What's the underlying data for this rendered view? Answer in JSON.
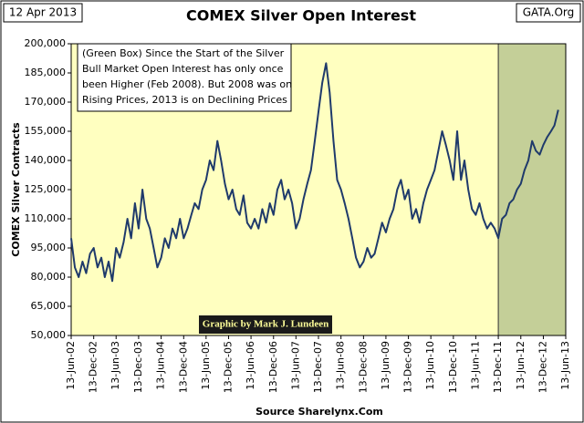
{
  "chart_data": {
    "type": "line",
    "title": "COMEX Silver Open Interest",
    "date_label": "12 Apr 2013",
    "site_label": "GATA.Org",
    "source": "Source Sharelynx.Com",
    "credit": "Graphic by Mark J. Lundeen",
    "ylabel": "COMEX Silver Contracts",
    "annotation": [
      "(Green Box)  Since the Start of the Silver",
      "Bull Market Open Interest has only once",
      "been Higher (Feb 2008).  But 2008 was on",
      "Rising Prices, 2013 is on Declining Prices"
    ],
    "background": "#ffffc0",
    "shade": {
      "from": "2011-12-13",
      "to": "2013-06-13",
      "color": "#c4cf98"
    },
    "xlim": [
      "2002-06-13",
      "2013-06-13"
    ],
    "xticks": [
      {
        "value": "2002-06-13",
        "label": "13-Jun-02"
      },
      {
        "value": "2002-12-13",
        "label": "13-Dec-02"
      },
      {
        "value": "2003-06-13",
        "label": "13-Jun-03"
      },
      {
        "value": "2003-12-13",
        "label": "13-Dec-03"
      },
      {
        "value": "2004-06-13",
        "label": "13-Jun-04"
      },
      {
        "value": "2004-12-13",
        "label": "13-Dec-04"
      },
      {
        "value": "2005-06-13",
        "label": "13-Jun-05"
      },
      {
        "value": "2005-12-13",
        "label": "13-Dec-05"
      },
      {
        "value": "2006-06-13",
        "label": "13-Jun-06"
      },
      {
        "value": "2006-12-13",
        "label": "13-Dec-06"
      },
      {
        "value": "2007-06-13",
        "label": "13-Jun-07"
      },
      {
        "value": "2007-12-13",
        "label": "13-Dec-07"
      },
      {
        "value": "2008-06-13",
        "label": "13-Jun-08"
      },
      {
        "value": "2008-12-13",
        "label": "13-Dec-08"
      },
      {
        "value": "2009-06-13",
        "label": "13-Jun-09"
      },
      {
        "value": "2009-12-13",
        "label": "13-Dec-09"
      },
      {
        "value": "2010-06-13",
        "label": "13-Jun-10"
      },
      {
        "value": "2010-12-13",
        "label": "13-Dec-10"
      },
      {
        "value": "2011-06-13",
        "label": "13-Jun-11"
      },
      {
        "value": "2011-12-13",
        "label": "13-Dec-11"
      },
      {
        "value": "2012-06-13",
        "label": "13-Jun-12"
      },
      {
        "value": "2012-12-13",
        "label": "13-Dec-12"
      },
      {
        "value": "2013-06-13",
        "label": "13-Jun-13"
      }
    ],
    "ylim": [
      50000,
      200000
    ],
    "yticks": [
      {
        "value": 50000,
        "label": "50,000"
      },
      {
        "value": 65000,
        "label": "65,000"
      },
      {
        "value": 80000,
        "label": "80,000"
      },
      {
        "value": 95000,
        "label": "95,000"
      },
      {
        "value": 110000,
        "label": "110,000"
      },
      {
        "value": 125000,
        "label": "125,000"
      },
      {
        "value": 140000,
        "label": "140,000"
      },
      {
        "value": 155000,
        "label": "155,000"
      },
      {
        "value": 170000,
        "label": "170,000"
      },
      {
        "value": 185000,
        "label": "185,000"
      },
      {
        "value": 200000,
        "label": "200,000"
      }
    ],
    "x": [
      "2002-06-13",
      "2002-07-13",
      "2002-08-13",
      "2002-09-13",
      "2002-10-13",
      "2002-11-13",
      "2002-12-13",
      "2003-01-13",
      "2003-02-13",
      "2003-03-13",
      "2003-04-13",
      "2003-05-13",
      "2003-06-13",
      "2003-07-13",
      "2003-08-13",
      "2003-09-13",
      "2003-10-13",
      "2003-11-13",
      "2003-12-13",
      "2004-01-13",
      "2004-02-13",
      "2004-03-13",
      "2004-04-13",
      "2004-05-13",
      "2004-06-13",
      "2004-07-13",
      "2004-08-13",
      "2004-09-13",
      "2004-10-13",
      "2004-11-13",
      "2004-12-13",
      "2005-01-13",
      "2005-02-13",
      "2005-03-13",
      "2005-04-13",
      "2005-05-13",
      "2005-06-13",
      "2005-07-13",
      "2005-08-13",
      "2005-09-13",
      "2005-10-13",
      "2005-11-13",
      "2005-12-13",
      "2006-01-13",
      "2006-02-13",
      "2006-03-13",
      "2006-04-13",
      "2006-05-13",
      "2006-06-13",
      "2006-07-13",
      "2006-08-13",
      "2006-09-13",
      "2006-10-13",
      "2006-11-13",
      "2006-12-13",
      "2007-01-13",
      "2007-02-13",
      "2007-03-13",
      "2007-04-13",
      "2007-05-13",
      "2007-06-13",
      "2007-07-13",
      "2007-08-13",
      "2007-09-13",
      "2007-10-13",
      "2007-11-13",
      "2007-12-13",
      "2008-01-13",
      "2008-02-13",
      "2008-03-13",
      "2008-04-13",
      "2008-05-13",
      "2008-06-13",
      "2008-07-13",
      "2008-08-13",
      "2008-09-13",
      "2008-10-13",
      "2008-11-13",
      "2008-12-13",
      "2009-01-13",
      "2009-02-13",
      "2009-03-13",
      "2009-04-13",
      "2009-05-13",
      "2009-06-13",
      "2009-07-13",
      "2009-08-13",
      "2009-09-13",
      "2009-10-13",
      "2009-11-13",
      "2009-12-13",
      "2010-01-13",
      "2010-02-13",
      "2010-03-13",
      "2010-04-13",
      "2010-05-13",
      "2010-06-13",
      "2010-07-13",
      "2010-08-13",
      "2010-09-13",
      "2010-10-13",
      "2010-11-13",
      "2010-12-13",
      "2011-01-13",
      "2011-02-13",
      "2011-03-13",
      "2011-04-13",
      "2011-05-13",
      "2011-06-13",
      "2011-07-13",
      "2011-08-13",
      "2011-09-13",
      "2011-10-13",
      "2011-11-13",
      "2011-12-13",
      "2012-01-13",
      "2012-02-13",
      "2012-03-13",
      "2012-04-13",
      "2012-05-13",
      "2012-06-13",
      "2012-07-13",
      "2012-08-13",
      "2012-09-13",
      "2012-10-13",
      "2012-11-13",
      "2012-12-13",
      "2013-01-13",
      "2013-02-13",
      "2013-03-13",
      "2013-04-13"
    ],
    "series": [
      {
        "color": "#1f3a6b",
        "values": [
          100000,
          85000,
          80000,
          88000,
          82000,
          92000,
          95000,
          85000,
          90000,
          80000,
          88000,
          78000,
          95000,
          90000,
          98000,
          110000,
          100000,
          118000,
          105000,
          125000,
          110000,
          105000,
          95000,
          85000,
          90000,
          100000,
          95000,
          105000,
          100000,
          110000,
          100000,
          105000,
          112000,
          118000,
          115000,
          125000,
          130000,
          140000,
          135000,
          150000,
          140000,
          128000,
          120000,
          125000,
          115000,
          112000,
          122000,
          108000,
          105000,
          110000,
          105000,
          115000,
          108000,
          118000,
          112000,
          125000,
          130000,
          120000,
          125000,
          118000,
          105000,
          110000,
          120000,
          128000,
          135000,
          150000,
          165000,
          180000,
          190000,
          175000,
          150000,
          130000,
          125000,
          118000,
          110000,
          100000,
          90000,
          85000,
          88000,
          95000,
          90000,
          92000,
          100000,
          108000,
          103000,
          110000,
          115000,
          125000,
          130000,
          120000,
          125000,
          110000,
          115000,
          108000,
          118000,
          125000,
          130000,
          135000,
          145000,
          155000,
          148000,
          140000,
          130000,
          155000,
          130000,
          140000,
          125000,
          115000,
          112000,
          118000,
          110000,
          105000,
          108000,
          105000,
          100000,
          110000,
          112000,
          118000,
          120000,
          125000,
          128000,
          135000,
          140000,
          150000,
          145000,
          143000,
          148000,
          152000,
          155000,
          158000,
          166000
        ]
      }
    ]
  }
}
